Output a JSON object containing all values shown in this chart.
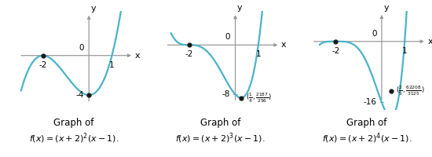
{
  "graphs": [
    {
      "title_line1": "Graph of",
      "title_line2": "f(x) = (x + 2)^{2}(x - 1).",
      "x_ticks": [
        -2,
        0,
        1
      ],
      "y_tick_val": -4,
      "y_tick_label": "-4",
      "key_points": [
        [
          -2,
          0
        ],
        [
          0,
          -4
        ]
      ],
      "xlim": [
        -3.3,
        2.0
      ],
      "ylim": [
        -5.5,
        4.5
      ],
      "xrange": [
        -2.95,
        1.7
      ],
      "exponent": 2
    },
    {
      "title_line1": "Graph of",
      "title_line2": "f(x) = (x + 2)^{3}(x - 1).",
      "x_ticks": [
        -2,
        0,
        1
      ],
      "y_tick_val": -8,
      "y_tick_label": "-8",
      "key_points": [
        [
          -2,
          0
        ],
        [
          0.25,
          -8.5351
        ]
      ],
      "xlim": [
        -3.3,
        2.0
      ],
      "ylim": [
        -10.5,
        5.5
      ],
      "xrange": [
        -2.8,
        1.55
      ],
      "exponent": 3,
      "ann_x": 0.25,
      "ann_y": -8.5351
    },
    {
      "title_line1": "Graph of",
      "title_line2": "f(x) = (x + 2)^{4}(x - 1).",
      "x_ticks": [
        -2,
        0,
        1
      ],
      "y_tick_val": -16,
      "y_tick_label": "-16",
      "key_points": [
        [
          -2,
          0
        ],
        [
          0.4,
          -13.0493
        ]
      ],
      "xlim": [
        -3.3,
        2.0
      ],
      "ylim": [
        -18.0,
        8.0
      ],
      "xrange": [
        -2.7,
        1.4
      ],
      "exponent": 4,
      "ann_x": 0.4,
      "ann_y": -13.0493
    }
  ],
  "curve_color": "#4ab3c8",
  "curve_lw": 1.6,
  "axis_color": "#999999",
  "dot_color": "#1a1a1a",
  "dot_ms": 3.5,
  "font_size_tick": 7.5,
  "font_size_ann": 6.0,
  "font_size_title1": 8.5,
  "font_size_title2": 8.0,
  "background": "#ffffff"
}
